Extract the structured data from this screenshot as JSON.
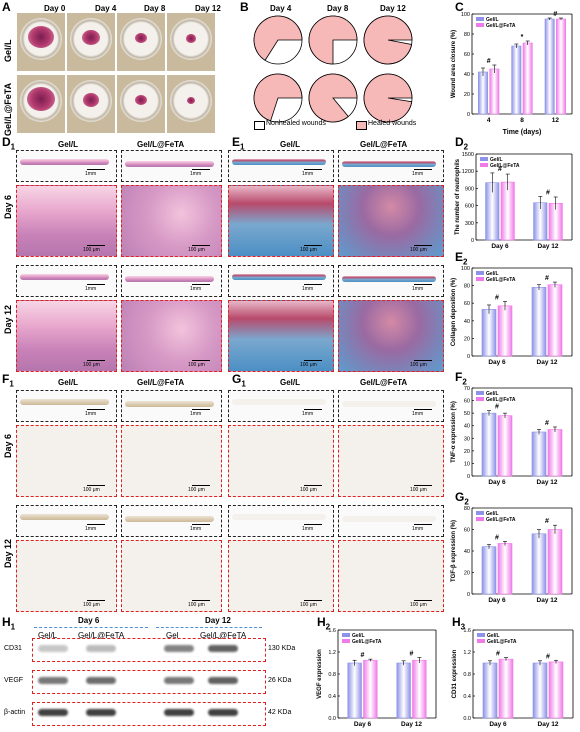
{
  "panels": {
    "A": "A",
    "B": "B",
    "C": "C",
    "D1": "D",
    "D1s": "1",
    "E1": "E",
    "E1s": "1",
    "D2": "D",
    "D2s": "2",
    "E2": "E",
    "E2s": "2",
    "F1": "F",
    "F1s": "1",
    "G1": "G",
    "G1s": "1",
    "F2": "F",
    "F2s": "2",
    "G2": "G",
    "G2s": "2",
    "H1": "H",
    "H1s": "1",
    "H2": "H",
    "H2s": "2",
    "H3": "H",
    "H3s": "3"
  },
  "days_A": [
    "Day 0",
    "Day 4",
    "Day 8",
    "Day 12"
  ],
  "rows_A": [
    "Gel/L",
    "Gel/L@FeTA"
  ],
  "days_B": [
    "Day 4",
    "Day 8",
    "Day 12"
  ],
  "legend_B": {
    "nonhealed": "Nonhealed wounds",
    "healed": "Healed wounds"
  },
  "histo": {
    "gel": "Gel/L",
    "gelfeta": "Gel/L@FeTA",
    "day6": "Day 6",
    "day12": "Day 12",
    "mm": "1mm",
    "um": "100 μm"
  },
  "H1": {
    "day6": "Day 6",
    "day12": "Day 12",
    "lanes": [
      "Gel/L",
      "Gel/L@FeTA",
      "Gel",
      "Gel/L@FeTA"
    ],
    "proteins": [
      "CD31",
      "VEGF",
      "β-actin"
    ],
    "kda": [
      "130 KDa",
      "26 KDa",
      "42 KDa"
    ]
  },
  "pie_B": {
    "healed_fraction": [
      [
        0.66,
        0.75,
        0.97
      ],
      [
        0.7,
        0.86,
        0.975
      ]
    ]
  },
  "chart_data": [
    {
      "type": "bar",
      "id": "C",
      "categories": [
        "4",
        "8",
        "12"
      ],
      "series": [
        {
          "name": "Gel/L",
          "values": [
            42,
            68,
            95
          ]
        },
        {
          "name": "Gel/L@FeTA",
          "values": [
            45,
            71,
            95
          ]
        }
      ],
      "errors": [
        [
          4,
          2,
          1
        ],
        [
          4,
          2,
          1
        ]
      ],
      "marks": [
        "#",
        "*",
        "#"
      ],
      "xlabel": "Time (days)",
      "ylabel": "Wound area closure (%)",
      "ylim": [
        0,
        100
      ],
      "yticks": [
        0,
        20,
        40,
        60,
        80,
        100
      ]
    },
    {
      "type": "bar",
      "id": "D2",
      "categories": [
        "Day 6",
        "Day 12"
      ],
      "series": [
        {
          "name": "Gel/L",
          "values": [
            1000,
            650
          ]
        },
        {
          "name": "Gel/L@FeTA",
          "values": [
            1010,
            640
          ]
        }
      ],
      "errors": [
        [
          170,
          110
        ],
        [
          140,
          110
        ]
      ],
      "marks": [
        "#",
        "#"
      ],
      "ylabel": "The number of neutrophils",
      "ylim": [
        0,
        1500
      ],
      "yticks": [
        0,
        300,
        600,
        900,
        1200,
        1500
      ]
    },
    {
      "type": "bar",
      "id": "E2",
      "categories": [
        "Day 6",
        "Day 12"
      ],
      "series": [
        {
          "name": "Gel/L",
          "values": [
            53,
            78
          ]
        },
        {
          "name": "Gel/L@FeTA",
          "values": [
            57,
            81
          ]
        }
      ],
      "errors": [
        [
          5,
          3
        ],
        [
          5,
          3
        ]
      ],
      "marks": [
        "#",
        "#"
      ],
      "ylabel": "Collagen deposition (%)",
      "ylim": [
        0,
        100
      ],
      "yticks": [
        0,
        20,
        40,
        60,
        80,
        100
      ]
    },
    {
      "type": "bar",
      "id": "F2",
      "categories": [
        "Day 6",
        "Day 12"
      ],
      "series": [
        {
          "name": "Gel/L",
          "values": [
            50,
            35
          ]
        },
        {
          "name": "Gel/L@FeTA",
          "values": [
            48,
            37
          ]
        }
      ],
      "errors": [
        [
          2,
          2
        ],
        [
          2,
          2
        ]
      ],
      "marks": [
        "#",
        "#"
      ],
      "ylabel": "TNF-α expression (%)",
      "ylim": [
        0,
        70
      ],
      "yticks": [
        0,
        10,
        20,
        30,
        40,
        50,
        60,
        70
      ]
    },
    {
      "type": "bar",
      "id": "G2",
      "categories": [
        "Day 6",
        "Day 12"
      ],
      "series": [
        {
          "name": "Gel/L",
          "values": [
            44,
            56
          ]
        },
        {
          "name": "Gel/L@FeTA",
          "values": [
            47,
            60
          ]
        }
      ],
      "errors": [
        [
          2,
          4
        ],
        [
          2,
          4
        ]
      ],
      "marks": [
        "#",
        "#"
      ],
      "ylabel": "TGF-β expression (%)",
      "ylim": [
        0,
        80
      ],
      "yticks": [
        0,
        20,
        40,
        60,
        80
      ]
    },
    {
      "type": "bar",
      "id": "H2",
      "categories": [
        "Day 6",
        "Day 12"
      ],
      "series": [
        {
          "name": "Gel/L",
          "values": [
            1.0,
            1.0
          ]
        },
        {
          "name": "Gel/L@FeTA",
          "values": [
            1.05,
            1.05
          ]
        }
      ],
      "errors": [
        [
          0.05,
          0.04
        ],
        [
          0.02,
          0.05
        ]
      ],
      "marks": [
        "#",
        "#"
      ],
      "ylabel": "VEGF expression",
      "ylim": [
        0,
        1.6
      ],
      "yticks": [
        0.0,
        0.4,
        0.8,
        1.2,
        1.6
      ]
    },
    {
      "type": "bar",
      "id": "H3",
      "categories": [
        "Day 6",
        "Day 12"
      ],
      "series": [
        {
          "name": "Gel/L",
          "values": [
            1.0,
            1.0
          ]
        },
        {
          "name": "Gel/L@FeTA",
          "values": [
            1.07,
            1.02
          ]
        }
      ],
      "errors": [
        [
          0.04,
          0.04
        ],
        [
          0.03,
          0.03
        ]
      ],
      "marks": [
        "#",
        "#"
      ],
      "ylabel": "CD31 expression",
      "ylim": [
        0,
        1.6
      ],
      "yticks": [
        0.0,
        0.4,
        0.8,
        1.2,
        1.6
      ]
    }
  ],
  "colors": {
    "gel": "#8e92e8",
    "gelfeta": "#f07ae8",
    "healed": "#f7b8b8",
    "red": "#e02020",
    "blue": "#4a8fd8"
  }
}
